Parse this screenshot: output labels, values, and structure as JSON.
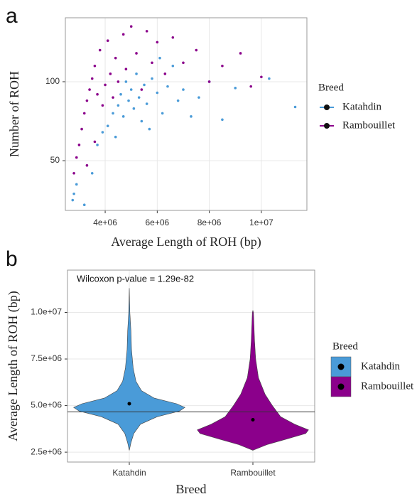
{
  "chart_data": [
    {
      "type": "scatter",
      "panel_label": "a",
      "xlabel": "Average Length of ROH (bp)",
      "ylabel": "Number of ROH",
      "legend_title": "Breed",
      "grid": true,
      "xlim": [
        2470000,
        11750000
      ],
      "ylim": [
        18.5,
        140.5
      ],
      "xticks": [
        {
          "value": 4000000,
          "label": "4e+06"
        },
        {
          "value": 6000000,
          "label": "6e+06"
        },
        {
          "value": 8000000,
          "label": "8e+06"
        },
        {
          "value": 10000000,
          "label": "1e+07"
        }
      ],
      "yticks": [
        50,
        100
      ],
      "series": [
        {
          "name": "Katahdin",
          "color": "#4a9bd8",
          "x": [
            2750000,
            2800000,
            2900000,
            3200000,
            3500000,
            3700000,
            3900000,
            4100000,
            4300000,
            4500000,
            4600000,
            4700000,
            4800000,
            4900000,
            5000000,
            5100000,
            5200000,
            5300000,
            5400000,
            5500000,
            5600000,
            5800000,
            6000000,
            6200000,
            6400000,
            6600000,
            6800000,
            7000000,
            7300000,
            7600000,
            8000000,
            8500000,
            9000000,
            10300000,
            11300000,
            5700000,
            4400000,
            6100000
          ],
          "y": [
            25,
            29,
            35,
            22,
            42,
            60,
            68,
            72,
            80,
            85,
            92,
            78,
            100,
            88,
            95,
            83,
            105,
            90,
            75,
            98,
            86,
            102,
            93,
            80,
            97,
            110,
            88,
            95,
            78,
            90,
            100,
            76,
            96,
            102,
            84,
            70,
            65,
            115
          ]
        },
        {
          "name": "Rambouillet",
          "color": "#8b008b",
          "x": [
            2800000,
            2900000,
            3000000,
            3100000,
            3200000,
            3300000,
            3400000,
            3500000,
            3600000,
            3700000,
            3800000,
            3900000,
            4000000,
            4100000,
            4200000,
            4300000,
            4400000,
            4500000,
            4700000,
            4800000,
            5000000,
            5200000,
            5400000,
            5600000,
            5800000,
            6000000,
            6300000,
            6600000,
            7000000,
            7500000,
            8000000,
            8500000,
            9200000,
            9600000,
            10000000,
            3300000,
            3600000
          ],
          "y": [
            42,
            52,
            60,
            70,
            80,
            88,
            95,
            102,
            110,
            92,
            120,
            85,
            98,
            126,
            105,
            90,
            115,
            100,
            130,
            108,
            135,
            118,
            95,
            132,
            112,
            125,
            105,
            128,
            112,
            120,
            100,
            110,
            118,
            97,
            103,
            47,
            62
          ]
        }
      ]
    },
    {
      "type": "violin",
      "panel_label": "b",
      "xlabel": "Breed",
      "ylabel": "Average Length of ROH (bp)",
      "annotation": "Wilcoxon p-value = 1.29e-82",
      "legend_title": "Breed",
      "grid": true,
      "categories": [
        "Katahdin",
        "Rambouillet"
      ],
      "ylim": [
        1970000,
        12270000
      ],
      "yticks": [
        {
          "value": 2500000,
          "label": "2.5e+06"
        },
        {
          "value": 5000000,
          "label": "5.0e+06"
        },
        {
          "value": 7500000,
          "label": "7.5e+06"
        },
        {
          "value": 10000000,
          "label": "1.0e+07"
        }
      ],
      "mean_line": 4660000,
      "series": [
        {
          "name": "Katahdin",
          "color": "#4a9bd8",
          "mean": 5100000,
          "density_y": [
            2600000,
            3000000,
            3500000,
            4000000,
            4400000,
            4700000,
            4900000,
            5100000,
            5400000,
            5800000,
            6300000,
            7000000,
            8000000,
            9000000,
            10000000,
            11300000
          ],
          "density_width": [
            0,
            0.03,
            0.08,
            0.2,
            0.5,
            0.9,
            1,
            0.85,
            0.45,
            0.22,
            0.12,
            0.07,
            0.04,
            0.03,
            0.01,
            0
          ]
        },
        {
          "name": "Rambouillet",
          "color": "#8b008b",
          "mean": 4240000,
          "density_y": [
            2600000,
            2900000,
            3200000,
            3500000,
            3700000,
            4000000,
            4400000,
            5000000,
            5600000,
            6500000,
            7500000,
            8500000,
            10000000,
            10100000
          ],
          "density_width": [
            0,
            0.25,
            0.6,
            0.95,
            1,
            0.75,
            0.5,
            0.35,
            0.22,
            0.1,
            0.05,
            0.03,
            0.01,
            0
          ]
        }
      ]
    }
  ]
}
